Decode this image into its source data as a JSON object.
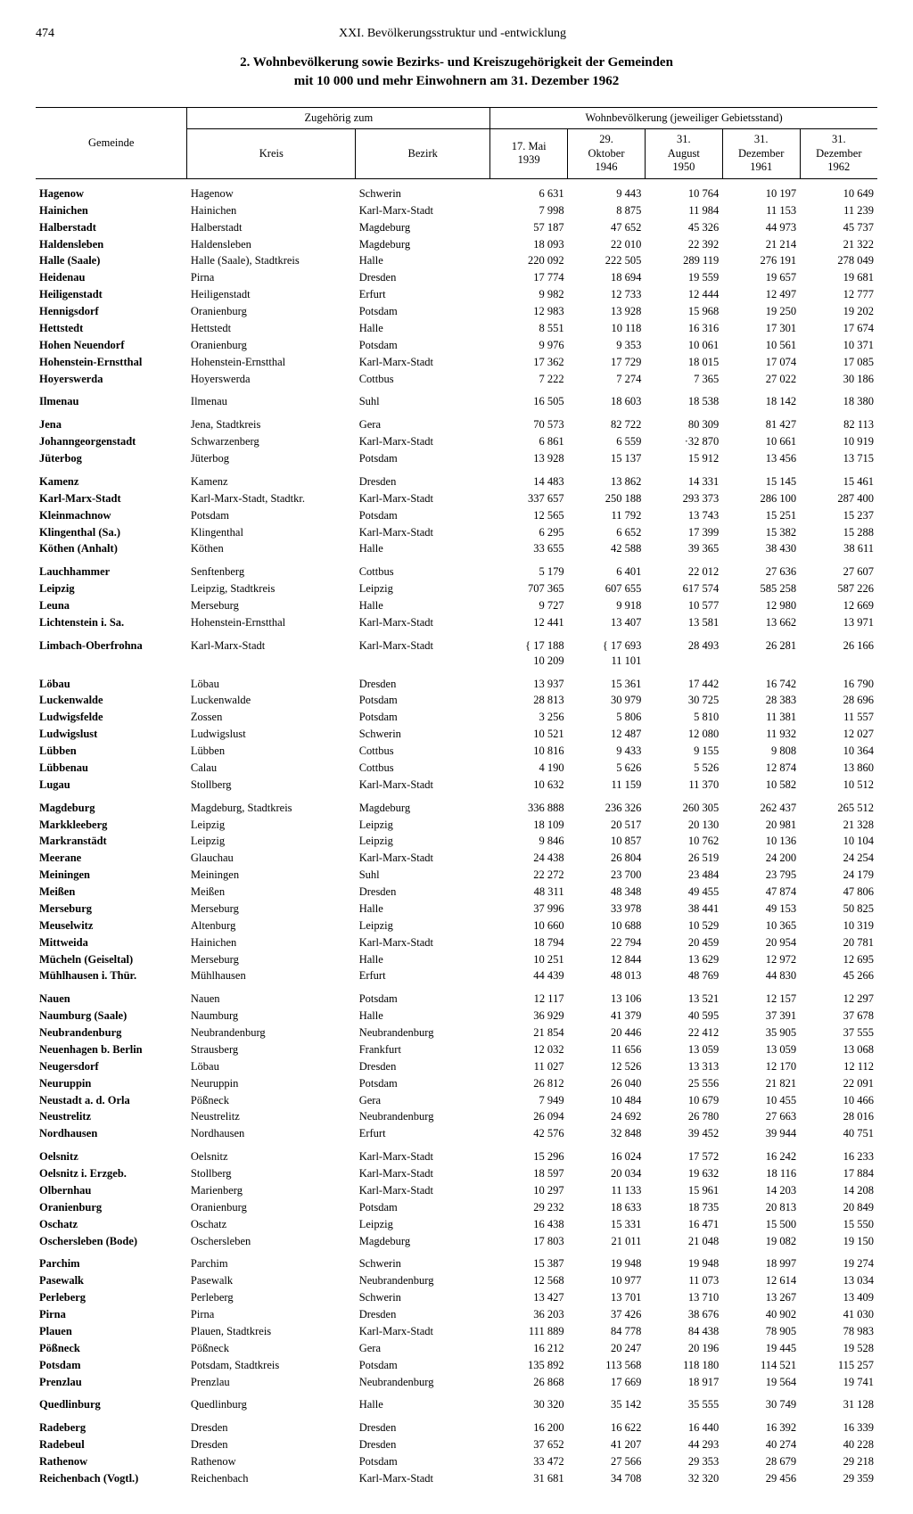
{
  "page_number": "474",
  "chapter": "XXI. Bevölkerungsstruktur und -entwicklung",
  "title_line1": "2. Wohnbevölkerung sowie Bezirks- und Kreiszugehörigkeit der Gemeinden",
  "title_line2": "mit 10 000 und mehr Einwohnern am 31. Dezember 1962",
  "headers": {
    "gemeinde": "Gemeinde",
    "zugehoerig": "Zugehörig zum",
    "kreis": "Kreis",
    "bezirk": "Bezirk",
    "wohn": "Wohnbevölkerung (jeweiliger Gebietsstand)",
    "d1": "17. Mai\n1939",
    "d2": "29.\nOktober\n1946",
    "d3": "31.\nAugust\n1950",
    "d4": "31.\nDezember\n1961",
    "d5": "31.\nDezember\n1962"
  },
  "rows": [
    {
      "g": "Hagenow",
      "k": "Hagenow",
      "b": "Schwerin",
      "v": [
        "6 631",
        "9 443",
        "10 764",
        "10 197",
        "10 649"
      ],
      "grp": true
    },
    {
      "g": "Hainichen",
      "k": "Hainichen",
      "b": "Karl-Marx-Stadt",
      "v": [
        "7 998",
        "8 875",
        "11 984",
        "11 153",
        "11 239"
      ]
    },
    {
      "g": "Halberstadt",
      "k": "Halberstadt",
      "b": "Magdeburg",
      "v": [
        "57 187",
        "47 652",
        "45 326",
        "44 973",
        "45 737"
      ]
    },
    {
      "g": "Haldensleben",
      "k": "Haldensleben",
      "b": "Magdeburg",
      "v": [
        "18 093",
        "22 010",
        "22 392",
        "21 214",
        "21 322"
      ]
    },
    {
      "g": "Halle (Saale)",
      "k": "Halle (Saale), Stadtkreis",
      "b": "Halle",
      "v": [
        "220 092",
        "222 505",
        "289 119",
        "276 191",
        "278 049"
      ]
    },
    {
      "g": "Heidenau",
      "k": "Pirna",
      "b": "Dresden",
      "v": [
        "17 774",
        "18 694",
        "19 559",
        "19 657",
        "19 681"
      ]
    },
    {
      "g": "Heiligenstadt",
      "k": "Heiligenstadt",
      "b": "Erfurt",
      "v": [
        "9 982",
        "12 733",
        "12 444",
        "12 497",
        "12 777"
      ]
    },
    {
      "g": "Hennigsdorf",
      "k": "Oranienburg",
      "b": "Potsdam",
      "v": [
        "12 983",
        "13 928",
        "15 968",
        "19 250",
        "19 202"
      ]
    },
    {
      "g": "Hettstedt",
      "k": "Hettstedt",
      "b": "Halle",
      "v": [
        "8 551",
        "10 118",
        "16 316",
        "17 301",
        "17 674"
      ]
    },
    {
      "g": "Hohen Neuendorf",
      "k": "Oranienburg",
      "b": "Potsdam",
      "v": [
        "9 976",
        "9 353",
        "10 061",
        "10 561",
        "10 371"
      ]
    },
    {
      "g": "Hohenstein-Ernstthal",
      "k": "Hohenstein-Ernstthal",
      "b": "Karl-Marx-Stadt",
      "v": [
        "17 362",
        "17 729",
        "18 015",
        "17 074",
        "17 085"
      ]
    },
    {
      "g": "Hoyerswerda",
      "k": "Hoyerswerda",
      "b": "Cottbus",
      "v": [
        "7 222",
        "7 274",
        "7 365",
        "27 022",
        "30 186"
      ]
    },
    {
      "g": "Ilmenau",
      "k": "Ilmenau",
      "b": "Suhl",
      "v": [
        "16 505",
        "18 603",
        "18 538",
        "18 142",
        "18 380"
      ],
      "grp": true
    },
    {
      "g": "Jena",
      "k": "Jena, Stadtkreis",
      "b": "Gera",
      "v": [
        "70 573",
        "82 722",
        "80 309",
        "81 427",
        "82 113"
      ],
      "grp": true
    },
    {
      "g": "Johanngeorgenstadt",
      "k": "Schwarzenberg",
      "b": "Karl-Marx-Stadt",
      "v": [
        "6 861",
        "6 559",
        "·32 870",
        "10 661",
        "10 919"
      ]
    },
    {
      "g": "Jüterbog",
      "k": "Jüterbog",
      "b": "Potsdam",
      "v": [
        "13 928",
        "15 137",
        "15 912",
        "13 456",
        "13 715"
      ]
    },
    {
      "g": "Kamenz",
      "k": "Kamenz",
      "b": "Dresden",
      "v": [
        "14 483",
        "13 862",
        "14 331",
        "15 145",
        "15 461"
      ],
      "grp": true
    },
    {
      "g": "Karl-Marx-Stadt",
      "k": "Karl-Marx-Stadt, Stadtkr.",
      "b": "Karl-Marx-Stadt",
      "v": [
        "337 657",
        "250 188",
        "293 373",
        "286 100",
        "287 400"
      ]
    },
    {
      "g": "Kleinmachnow",
      "k": "Potsdam",
      "b": "Potsdam",
      "v": [
        "12 565",
        "11 792",
        "13 743",
        "15 251",
        "15 237"
      ]
    },
    {
      "g": "Klingenthal (Sa.)",
      "k": "Klingenthal",
      "b": "Karl-Marx-Stadt",
      "v": [
        "6 295",
        "6 652",
        "17 399",
        "15 382",
        "15 288"
      ]
    },
    {
      "g": "Köthen (Anhalt)",
      "k": "Köthen",
      "b": "Halle",
      "v": [
        "33 655",
        "42 588",
        "39 365",
        "38 430",
        "38 611"
      ]
    },
    {
      "g": "Lauchhammer",
      "k": "Senftenberg",
      "b": "Cottbus",
      "v": [
        "5 179",
        "6 401",
        "22 012",
        "27 636",
        "27 607"
      ],
      "grp": true
    },
    {
      "g": "Leipzig",
      "k": "Leipzig, Stadtkreis",
      "b": "Leipzig",
      "v": [
        "707 365",
        "607 655",
        "617 574",
        "585 258",
        "587 226"
      ]
    },
    {
      "g": "Leuna",
      "k": "Merseburg",
      "b": "Halle",
      "v": [
        "9 727",
        "9 918",
        "10 577",
        "12 980",
        "12 669"
      ]
    },
    {
      "g": "Lichtenstein i. Sa.",
      "k": "Hohenstein-Ernstthal",
      "b": "Karl-Marx-Stadt",
      "v": [
        "12 441",
        "13 407",
        "13 581",
        "13 662",
        "13 971"
      ]
    },
    {
      "g": "Limbach-Oberfrohna",
      "k": "Karl-Marx-Stadt",
      "b": "Karl-Marx-Stadt",
      "v": [
        "{ 17 188\n  10 209",
        "{ 17 693\n  11 101",
        "28 493",
        "26 281",
        "26 166"
      ],
      "grp": true
    },
    {
      "g": "Löbau",
      "k": "Löbau",
      "b": "Dresden",
      "v": [
        "13 937",
        "15 361",
        "17 442",
        "16 742",
        "16 790"
      ],
      "grp": true
    },
    {
      "g": "Luckenwalde",
      "k": "Luckenwalde",
      "b": "Potsdam",
      "v": [
        "28 813",
        "30 979",
        "30 725",
        "28 383",
        "28 696"
      ]
    },
    {
      "g": "Ludwigsfelde",
      "k": "Zossen",
      "b": "Potsdam",
      "v": [
        "3 256",
        "5 806",
        "5 810",
        "11 381",
        "11 557"
      ]
    },
    {
      "g": "Ludwigslust",
      "k": "Ludwigslust",
      "b": "Schwerin",
      "v": [
        "10 521",
        "12 487",
        "12 080",
        "11 932",
        "12 027"
      ]
    },
    {
      "g": "Lübben",
      "k": "Lübben",
      "b": "Cottbus",
      "v": [
        "10 816",
        "9 433",
        "9 155",
        "9 808",
        "10 364"
      ]
    },
    {
      "g": "Lübbenau",
      "k": "Calau",
      "b": "Cottbus",
      "v": [
        "4 190",
        "5 626",
        "5 526",
        "12 874",
        "13 860"
      ]
    },
    {
      "g": "Lugau",
      "k": "Stollberg",
      "b": "Karl-Marx-Stadt",
      "v": [
        "10 632",
        "11 159",
        "11 370",
        "10 582",
        "10 512"
      ]
    },
    {
      "g": "Magdeburg",
      "k": "Magdeburg, Stadtkreis",
      "b": "Magdeburg",
      "v": [
        "336 888",
        "236 326",
        "260 305",
        "262 437",
        "265 512"
      ],
      "grp": true
    },
    {
      "g": "Markkleeberg",
      "k": "Leipzig",
      "b": "Leipzig",
      "v": [
        "18 109",
        "20 517",
        "20 130",
        "20 981",
        "21 328"
      ]
    },
    {
      "g": "Markranstädt",
      "k": "Leipzig",
      "b": "Leipzig",
      "v": [
        "9 846",
        "10 857",
        "10 762",
        "10 136",
        "10 104"
      ]
    },
    {
      "g": "Meerane",
      "k": "Glauchau",
      "b": "Karl-Marx-Stadt",
      "v": [
        "24 438",
        "26 804",
        "26 519",
        "24 200",
        "24 254"
      ]
    },
    {
      "g": "Meiningen",
      "k": "Meiningen",
      "b": "Suhl",
      "v": [
        "22 272",
        "23 700",
        "23 484",
        "23 795",
        "24 179"
      ]
    },
    {
      "g": "Meißen",
      "k": "Meißen",
      "b": "Dresden",
      "v": [
        "48 311",
        "48 348",
        "49 455",
        "47 874",
        "47 806"
      ]
    },
    {
      "g": "Merseburg",
      "k": "Merseburg",
      "b": "Halle",
      "v": [
        "37 996",
        "33 978",
        "38 441",
        "49 153",
        "50 825"
      ]
    },
    {
      "g": "Meuselwitz",
      "k": "Altenburg",
      "b": "Leipzig",
      "v": [
        "10 660",
        "10 688",
        "10 529",
        "10 365",
        "10 319"
      ]
    },
    {
      "g": "Mittweida",
      "k": "Hainichen",
      "b": "Karl-Marx-Stadt",
      "v": [
        "18 794",
        "22 794",
        "20 459",
        "20 954",
        "20 781"
      ]
    },
    {
      "g": "Mücheln (Geiseltal)",
      "k": "Merseburg",
      "b": "Halle",
      "v": [
        "10 251",
        "12 844",
        "13 629",
        "12 972",
        "12 695"
      ]
    },
    {
      "g": "Mühlhausen i. Thür.",
      "k": "Mühlhausen",
      "b": "Erfurt",
      "v": [
        "44 439",
        "48 013",
        "48 769",
        "44 830",
        "45 266"
      ]
    },
    {
      "g": "Nauen",
      "k": "Nauen",
      "b": "Potsdam",
      "v": [
        "12 117",
        "13 106",
        "13 521",
        "12 157",
        "12 297"
      ],
      "grp": true
    },
    {
      "g": "Naumburg (Saale)",
      "k": "Naumburg",
      "b": "Halle",
      "v": [
        "36 929",
        "41 379",
        "40 595",
        "37 391",
        "37 678"
      ]
    },
    {
      "g": "Neubrandenburg",
      "k": "Neubrandenburg",
      "b": "Neubrandenburg",
      "v": [
        "21 854",
        "20 446",
        "22 412",
        "35 905",
        "37 555"
      ]
    },
    {
      "g": "Neuenhagen b. Berlin",
      "k": "Strausberg",
      "b": "Frankfurt",
      "v": [
        "12 032",
        "11 656",
        "13 059",
        "13 059",
        "13 068"
      ]
    },
    {
      "g": "Neugersdorf",
      "k": "Löbau",
      "b": "Dresden",
      "v": [
        "11 027",
        "12 526",
        "13 313",
        "12 170",
        "12 112"
      ]
    },
    {
      "g": "Neuruppin",
      "k": "Neuruppin",
      "b": "Potsdam",
      "v": [
        "26 812",
        "26 040",
        "25 556",
        "21 821",
        "22 091"
      ]
    },
    {
      "g": "Neustadt a. d. Orla",
      "k": "Pößneck",
      "b": "Gera",
      "v": [
        "7 949",
        "10 484",
        "10 679",
        "10 455",
        "10 466"
      ]
    },
    {
      "g": "Neustrelitz",
      "k": "Neustrelitz",
      "b": "Neubrandenburg",
      "v": [
        "26 094",
        "24 692",
        "26 780",
        "27 663",
        "28 016"
      ]
    },
    {
      "g": "Nordhausen",
      "k": "Nordhausen",
      "b": "Erfurt",
      "v": [
        "42 576",
        "32 848",
        "39 452",
        "39 944",
        "40 751"
      ]
    },
    {
      "g": "Oelsnitz",
      "k": "Oelsnitz",
      "b": "Karl-Marx-Stadt",
      "v": [
        "15 296",
        "16 024",
        "17 572",
        "16 242",
        "16 233"
      ],
      "grp": true
    },
    {
      "g": "Oelsnitz i. Erzgeb.",
      "k": "Stollberg",
      "b": "Karl-Marx-Stadt",
      "v": [
        "18 597",
        "20 034",
        "19 632",
        "18 116",
        "17 884"
      ]
    },
    {
      "g": "Olbernhau",
      "k": "Marienberg",
      "b": "Karl-Marx-Stadt",
      "v": [
        "10 297",
        "11 133",
        "15 961",
        "14 203",
        "14 208"
      ]
    },
    {
      "g": "Oranienburg",
      "k": "Oranienburg",
      "b": "Potsdam",
      "v": [
        "29 232",
        "18 633",
        "18 735",
        "20 813",
        "20 849"
      ]
    },
    {
      "g": "Oschatz",
      "k": "Oschatz",
      "b": "Leipzig",
      "v": [
        "16 438",
        "15 331",
        "16 471",
        "15 500",
        "15 550"
      ]
    },
    {
      "g": "Oschersleben (Bode)",
      "k": "Oschersleben",
      "b": "Magdeburg",
      "v": [
        "17 803",
        "21 011",
        "21 048",
        "19 082",
        "19 150"
      ]
    },
    {
      "g": "Parchim",
      "k": "Parchim",
      "b": "Schwerin",
      "v": [
        "15 387",
        "19 948",
        "19 948",
        "18 997",
        "19 274"
      ],
      "grp": true
    },
    {
      "g": "Pasewalk",
      "k": "Pasewalk",
      "b": "Neubrandenburg",
      "v": [
        "12 568",
        "10 977",
        "11 073",
        "12 614",
        "13 034"
      ]
    },
    {
      "g": "Perleberg",
      "k": "Perleberg",
      "b": "Schwerin",
      "v": [
        "13 427",
        "13 701",
        "13 710",
        "13 267",
        "13 409"
      ]
    },
    {
      "g": "Pirna",
      "k": "Pirna",
      "b": "Dresden",
      "v": [
        "36 203",
        "37 426",
        "38 676",
        "40 902",
        "41 030"
      ]
    },
    {
      "g": "Plauen",
      "k": "Plauen, Stadtkreis",
      "b": "Karl-Marx-Stadt",
      "v": [
        "111 889",
        "84 778",
        "84 438",
        "78 905",
        "78 983"
      ]
    },
    {
      "g": "Pößneck",
      "k": "Pößneck",
      "b": "Gera",
      "v": [
        "16 212",
        "20 247",
        "20 196",
        "19 445",
        "19 528"
      ]
    },
    {
      "g": "Potsdam",
      "k": "Potsdam, Stadtkreis",
      "b": "Potsdam",
      "v": [
        "135 892",
        "113 568",
        "118 180",
        "114 521",
        "115 257"
      ]
    },
    {
      "g": "Prenzlau",
      "k": "Prenzlau",
      "b": "Neubrandenburg",
      "v": [
        "26 868",
        "17 669",
        "18 917",
        "19 564",
        "19 741"
      ]
    },
    {
      "g": "Quedlinburg",
      "k": "Quedlinburg",
      "b": "Halle",
      "v": [
        "30 320",
        "35 142",
        "35 555",
        "30 749",
        "31 128"
      ],
      "grp": true
    },
    {
      "g": "Radeberg",
      "k": "Dresden",
      "b": "Dresden",
      "v": [
        "16 200",
        "16 622",
        "16 440",
        "16 392",
        "16 339"
      ],
      "grp": true
    },
    {
      "g": "Radebeul",
      "k": "Dresden",
      "b": "Dresden",
      "v": [
        "37 652",
        "41 207",
        "44 293",
        "40 274",
        "40 228"
      ]
    },
    {
      "g": "Rathenow",
      "k": "Rathenow",
      "b": "Potsdam",
      "v": [
        "33 472",
        "27 566",
        "29 353",
        "28 679",
        "29 218"
      ]
    },
    {
      "g": "Reichenbach (Vogtl.)",
      "k": "Reichenbach",
      "b": "Karl-Marx-Stadt",
      "v": [
        "31 681",
        "34 708",
        "32 320",
        "29 456",
        "29 359"
      ]
    }
  ]
}
